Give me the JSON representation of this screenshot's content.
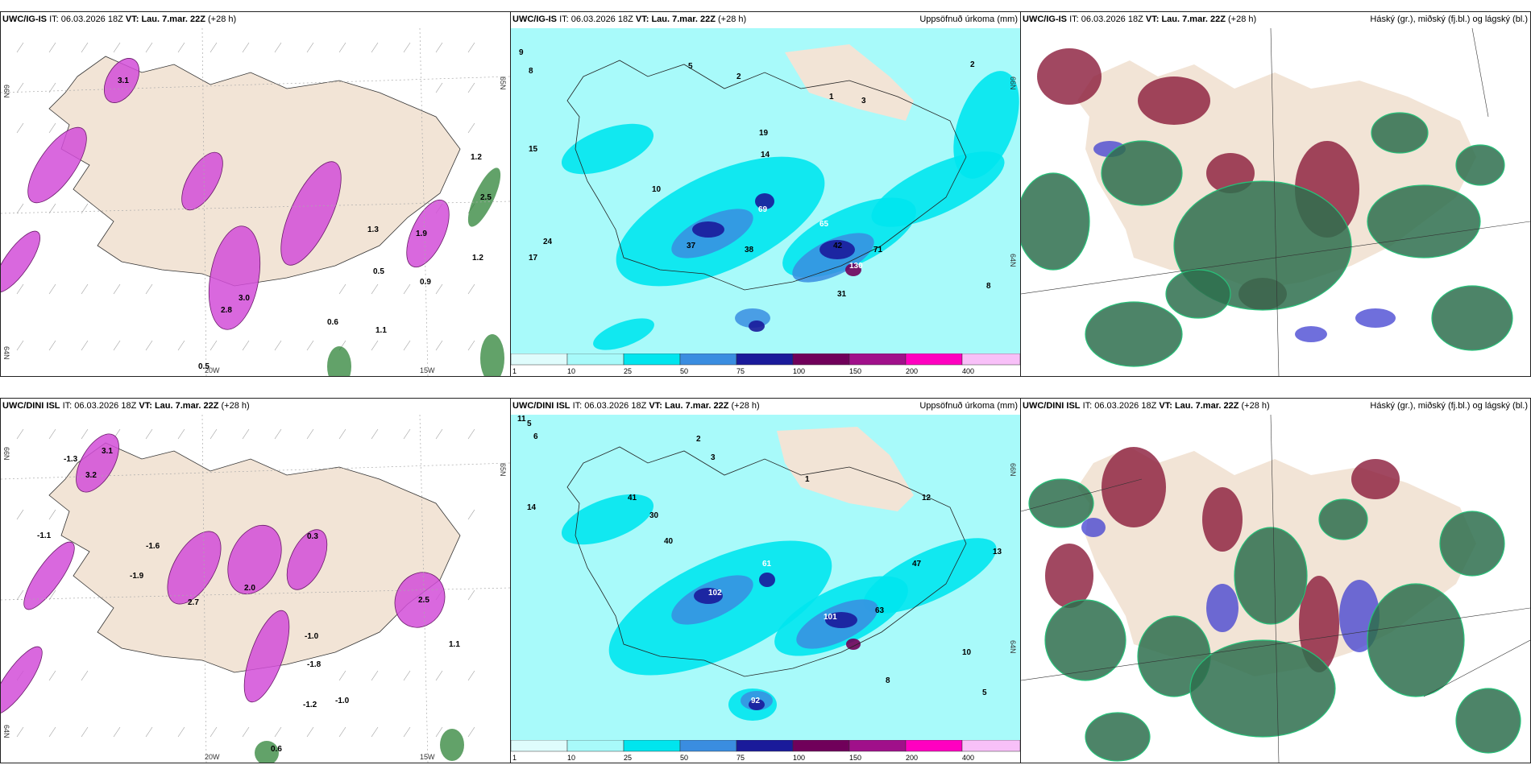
{
  "panels": [
    {
      "id": "p1",
      "model": "UWC/IG-IS",
      "it_label": "IT:",
      "it": "06.03.2026 18Z",
      "vt_label": "VT:",
      "vt": "Lau. 7.mar. 22Z",
      "lead": "(+28 h)",
      "right_title": "",
      "grid": {
        "lat1": "66N",
        "lat2": "65N",
        "lat3": "64N",
        "lon1": "20W",
        "lon2": "15W"
      },
      "values": [
        "3.1",
        "1.2",
        "1.9",
        "2.8",
        "3.0",
        "0.5",
        "0.9",
        "1.3",
        "0.6",
        "1.1",
        "0.5",
        "1.2",
        "2.5"
      ]
    },
    {
      "id": "p2",
      "model": "UWC/IG-IS",
      "it_label": "IT:",
      "it": "06.03.2026 18Z",
      "vt_label": "VT:",
      "vt": "Lau. 7.mar. 22Z",
      "lead": "(+28 h)",
      "right_title": "Uppsöfnuð úrkoma (mm)",
      "grid": {
        "lat1": "66N",
        "lat2": "64N"
      },
      "values": [
        "9",
        "8",
        "5",
        "2",
        "1",
        "3",
        "2",
        "19",
        "15",
        "24",
        "10",
        "31",
        "69",
        "37",
        "38",
        "42",
        "65",
        "71",
        "17",
        "14",
        "130",
        "8"
      ],
      "colorbar": [
        "1",
        "10",
        "25",
        "50",
        "75",
        "100",
        "150",
        "200",
        "400"
      ]
    },
    {
      "id": "p3",
      "model": "UWC/IG-IS",
      "it_label": "IT:",
      "it": "06.03.2026 18Z",
      "vt_label": "VT:",
      "vt": "Lau. 7.mar. 22Z",
      "lead": "(+28 h)",
      "right_title": "Háský (gr.), miðský (fj.bl.) og lágský (bl.)"
    },
    {
      "id": "p4",
      "model": "UWC/DINI ISL",
      "it_label": "IT:",
      "it": "06.03.2026 18Z",
      "vt_label": "VT:",
      "vt": "Lau. 7.mar. 22Z",
      "lead": "(+28 h)",
      "right_title": "",
      "grid": {
        "lat1": "66N",
        "lat2": "65N",
        "lat3": "64N",
        "lon1": "20W",
        "lon2": "15W"
      },
      "values": [
        "-1.3",
        "3.1",
        "3.2",
        "-1.1",
        "-1.6",
        "-1.9",
        "2.7",
        "2.0",
        "0.3",
        "-1.0",
        "-1.8",
        "-1.2",
        "-1.0",
        "1.1",
        "0.6",
        "2.5"
      ]
    },
    {
      "id": "p5",
      "model": "UWC/DINI ISL",
      "it_label": "IT:",
      "it": "06.03.2026 18Z",
      "vt_label": "VT:",
      "vt": "Lau. 7.mar. 22Z",
      "lead": "(+28 h)",
      "right_title": "Uppsöfnuð úrkoma (mm)",
      "grid": {
        "lat1": "66N",
        "lat2": "64N"
      },
      "values": [
        "11",
        "5",
        "6",
        "2",
        "3",
        "1",
        "12",
        "14",
        "41",
        "30",
        "40",
        "102",
        "61",
        "101",
        "63",
        "47",
        "92",
        "8",
        "13",
        "10",
        "5"
      ],
      "colorbar": [
        "1",
        "10",
        "25",
        "50",
        "75",
        "100",
        "150",
        "200",
        "400"
      ]
    },
    {
      "id": "p6",
      "model": "UWC/DINI ISL",
      "it_label": "IT:",
      "it": "06.03.2026 18Z",
      "vt_label": "VT:",
      "vt": "Lau. 7.mar. 22Z",
      "lead": "(+28 h)",
      "right_title": "Háský (gr.), miðský (fj.bl.) og lágský (bl.)"
    }
  ],
  "colors": {
    "land": "#f2e4d6",
    "sea": "#ffffff",
    "precip_light": "#a8fafa",
    "precip_mid": "#00e5ee",
    "precip_blue": "#3a8de0",
    "precip_dark": "#1a1a9a",
    "precip_purple": "#70005a",
    "magenta": "#d24ed8",
    "green": "#1f7a2a",
    "cloud_high": "#2e6e4e",
    "cloud_mid": "#8a1a3a",
    "cloud_low": "#3f3fd0"
  }
}
